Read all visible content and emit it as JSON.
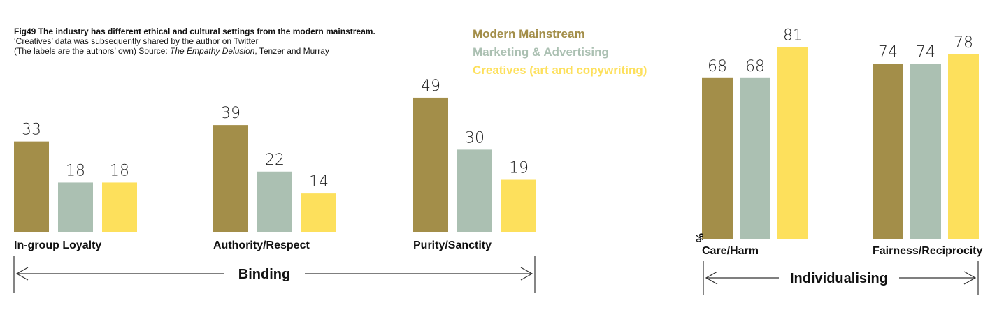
{
  "caption": {
    "fig": "Fig49",
    "title": "The industry has different ethical and cultural settings from the modern mainstream.",
    "line2": "‘Creatives’ data was subsequently shared by the author on Twitter",
    "line3_start": "(The labels are the authors’ own) Source: ",
    "line3_source": "The Empathy Delusion",
    "line3_end": ", Tenzer and Murray"
  },
  "colors": {
    "modern": "#a38e49",
    "marketing": "#abc0b2",
    "creatives": "#fde05c"
  },
  "chart_data": [
    {
      "type": "bar",
      "group": "Binding",
      "categories": [
        "In-group Loyalty",
        "Authority/Respect",
        "Purity/Sanctity"
      ],
      "series": [
        {
          "name": "Modern Mainstream",
          "values": [
            33,
            39,
            49
          ]
        },
        {
          "name": "Marketing & Advertising",
          "values": [
            18,
            22,
            30
          ]
        },
        {
          "name": "Creatives (art and copywriting)",
          "values": [
            18,
            14,
            19
          ]
        }
      ]
    },
    {
      "type": "bar",
      "group": "Individualising",
      "ylabel": "%",
      "categories": [
        "Care/Harm",
        "Fairness/Reciprocity"
      ],
      "series": [
        {
          "name": "Modern Mainstream",
          "values": [
            68,
            74
          ]
        },
        {
          "name": "Marketing & Advertising",
          "values": [
            68,
            74
          ]
        },
        {
          "name": "Creatives (art and copywriting)",
          "values": [
            81,
            78
          ]
        }
      ]
    }
  ]
}
